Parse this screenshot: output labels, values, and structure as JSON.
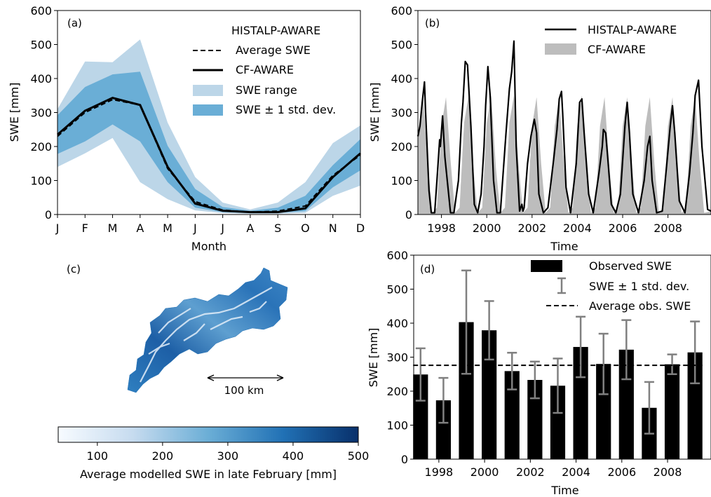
{
  "chart_data": [
    {
      "id": "a",
      "type": "area",
      "panel_label": "(a)",
      "legend_title": "HISTALP-AWARE",
      "xlabel": "Month",
      "ylabel": "SWE [mm]",
      "ylim": [
        0,
        600
      ],
      "yticks": [
        0,
        100,
        200,
        300,
        400,
        500,
        600
      ],
      "categories": [
        "J",
        "F",
        "M",
        "A",
        "M",
        "J",
        "J",
        "A",
        "S",
        "O",
        "N",
        "D"
      ],
      "legend_position": "top-right",
      "series": [
        {
          "name": "Average SWE",
          "style": "dashed",
          "values": [
            230,
            300,
            338,
            322,
            135,
            38,
            13,
            7,
            10,
            25,
            115,
            175
          ]
        },
        {
          "name": "CF-AWARE",
          "style": "solid",
          "values": [
            235,
            305,
            343,
            322,
            140,
            32,
            11,
            7,
            7,
            18,
            110,
            180
          ]
        }
      ],
      "bands": [
        {
          "name": "SWE range",
          "color": "#bcd6e8",
          "lower": [
            140,
            180,
            225,
            95,
            45,
            12,
            4,
            2,
            2,
            5,
            55,
            85
          ],
          "upper": [
            310,
            450,
            448,
            515,
            270,
            110,
            35,
            15,
            35,
            95,
            210,
            262
          ]
        },
        {
          "name": "SWE ± 1 std. dev.",
          "color": "#6aaed6",
          "lower": [
            178,
            215,
            265,
            215,
            95,
            20,
            7,
            4,
            5,
            10,
            80,
            130
          ],
          "upper": [
            292,
            375,
            412,
            420,
            202,
            75,
            22,
            11,
            20,
            55,
            145,
            222
          ]
        }
      ]
    },
    {
      "id": "b",
      "type": "line",
      "panel_label": "(b)",
      "xlabel": "Time",
      "ylabel": "SWE [mm]",
      "ylim": [
        0,
        600
      ],
      "xlim": [
        1996.96,
        2009.9
      ],
      "yticks": [
        0,
        100,
        200,
        300,
        400,
        500,
        600
      ],
      "xticks": [
        1998,
        2000,
        2002,
        2004,
        2006,
        2008
      ],
      "legend_position": "top-right",
      "series": [
        {
          "name": "HISTALP-AWARE",
          "color": "#000000",
          "x": [
            1996.96,
            1997.05,
            1997.15,
            1997.25,
            1997.3,
            1997.45,
            1997.55,
            1997.7,
            1997.8,
            1997.88,
            1997.92,
            1997.95,
            1998.05,
            1998.15,
            1998.4,
            1998.55,
            1998.75,
            1998.88,
            1998.95,
            1999.05,
            1999.15,
            1999.3,
            1999.45,
            1999.6,
            1999.75,
            1999.88,
            1999.95,
            2000.05,
            2000.15,
            2000.3,
            2000.45,
            2000.6,
            2000.7,
            2000.85,
            2001.0,
            2001.1,
            2001.2,
            2001.3,
            2001.45,
            2001.55,
            2001.6,
            2001.65,
            2001.8,
            2001.95,
            2002.1,
            2002.2,
            2002.3,
            2002.5,
            2002.7,
            2002.95,
            2003.1,
            2003.2,
            2003.3,
            2003.35,
            2003.5,
            2003.7,
            2003.95,
            2004.1,
            2004.2,
            2004.3,
            2004.5,
            2004.7,
            2004.95,
            2005.1,
            2005.15,
            2005.25,
            2005.35,
            2005.5,
            2005.7,
            2005.9,
            2006.1,
            2006.2,
            2006.3,
            2006.45,
            2006.7,
            2006.95,
            2007.1,
            2007.2,
            2007.3,
            2007.5,
            2007.75,
            2007.95,
            2008.1,
            2008.2,
            2008.3,
            2008.5,
            2008.75,
            2008.95,
            2009.1,
            2009.2,
            2009.35,
            2009.5,
            2009.75,
            2009.9
          ],
          "values": [
            230,
            260,
            330,
            390,
            300,
            70,
            5,
            5,
            100,
            180,
            220,
            200,
            290,
            170,
            5,
            5,
            100,
            270,
            330,
            450,
            440,
            260,
            30,
            5,
            60,
            200,
            320,
            435,
            350,
            100,
            5,
            5,
            100,
            240,
            370,
            420,
            510,
            200,
            10,
            30,
            10,
            20,
            150,
            230,
            280,
            240,
            60,
            5,
            20,
            160,
            250,
            340,
            362,
            300,
            80,
            5,
            150,
            330,
            340,
            240,
            60,
            5,
            120,
            200,
            250,
            240,
            160,
            30,
            5,
            60,
            260,
            330,
            240,
            60,
            5,
            100,
            200,
            230,
            100,
            5,
            10,
            150,
            260,
            320,
            240,
            40,
            5,
            120,
            240,
            350,
            395,
            200,
            15,
            10
          ]
        },
        {
          "name": "CF-AWARE",
          "color": "#bdbdbd",
          "x": [
            1996.96,
            1997.2,
            1997.4,
            1997.6,
            1997.8,
            1998.0,
            1998.2,
            1998.4,
            1998.6,
            1998.8,
            1999.0,
            1999.2,
            1999.4,
            1999.6,
            1999.8,
            2000.0,
            2000.2,
            2000.4,
            2000.6,
            2000.8,
            2001.0,
            2001.2,
            2001.4,
            2001.6,
            2001.8,
            2002.0,
            2002.2,
            2002.4,
            2002.6,
            2002.8,
            2003.0,
            2003.2,
            2003.4,
            2003.6,
            2003.8,
            2004.0,
            2004.2,
            2004.4,
            2004.6,
            2004.8,
            2005.0,
            2005.2,
            2005.4,
            2005.6,
            2005.8,
            2006.0,
            2006.2,
            2006.4,
            2006.6,
            2006.8,
            2007.0,
            2007.2,
            2007.4,
            2007.6,
            2007.8,
            2008.0,
            2008.2,
            2008.4,
            2008.6,
            2008.8,
            2009.0,
            2009.2,
            2009.4,
            2009.6,
            2009.9
          ],
          "values": [
            240,
            340,
            140,
            5,
            20,
            260,
            345,
            160,
            5,
            20,
            270,
            350,
            140,
            5,
            20,
            270,
            350,
            140,
            5,
            20,
            270,
            350,
            150,
            5,
            20,
            260,
            345,
            150,
            5,
            20,
            260,
            345,
            150,
            5,
            20,
            265,
            350,
            150,
            5,
            20,
            260,
            345,
            150,
            5,
            20,
            260,
            345,
            150,
            5,
            20,
            260,
            345,
            150,
            5,
            20,
            260,
            345,
            150,
            5,
            20,
            260,
            345,
            150,
            5,
            10
          ]
        }
      ]
    },
    {
      "id": "c",
      "type": "heatmap",
      "panel_label": "(c)",
      "colorbar_label": "Average modelled SWE in late February [mm]",
      "colorbar_range": [
        40,
        500
      ],
      "colorbar_ticks": [
        100,
        200,
        300,
        400,
        500
      ],
      "colormap": [
        "#f7fbff",
        "#c6dbef",
        "#6baed6",
        "#2171b5",
        "#08306b"
      ],
      "scale_bar_label": "100 km"
    },
    {
      "id": "d",
      "type": "bar",
      "panel_label": "(d)",
      "xlabel": "Time",
      "ylabel": "SWE [mm]",
      "ylim": [
        0,
        600
      ],
      "xlim": [
        1996.9,
        2009.9
      ],
      "yticks": [
        0,
        100,
        200,
        300,
        400,
        500,
        600
      ],
      "xticks": [
        1998,
        2000,
        2002,
        2004,
        2006,
        2008
      ],
      "legend_position": "top-right",
      "bar_width_years": 0.65,
      "series": [
        {
          "name": "Observed SWE",
          "color": "#000000",
          "x": [
            1997.2,
            1998.2,
            1999.2,
            2000.2,
            2001.2,
            2002.2,
            2003.2,
            2004.2,
            2005.2,
            2006.2,
            2007.2,
            2008.2,
            2009.2
          ],
          "values": [
            249,
            173,
            403,
            379,
            259,
            233,
            216,
            330,
            280,
            322,
            151,
            279,
            314
          ],
          "std": [
            77,
            66,
            152,
            86,
            54,
            54,
            80,
            89,
            89,
            87,
            76,
            29,
            91
          ]
        }
      ],
      "error_bar_name": "SWE ± 1 std. dev.",
      "error_bar_color": "#808080",
      "average_line": {
        "name": "Average obs. SWE",
        "value": 276
      }
    }
  ]
}
